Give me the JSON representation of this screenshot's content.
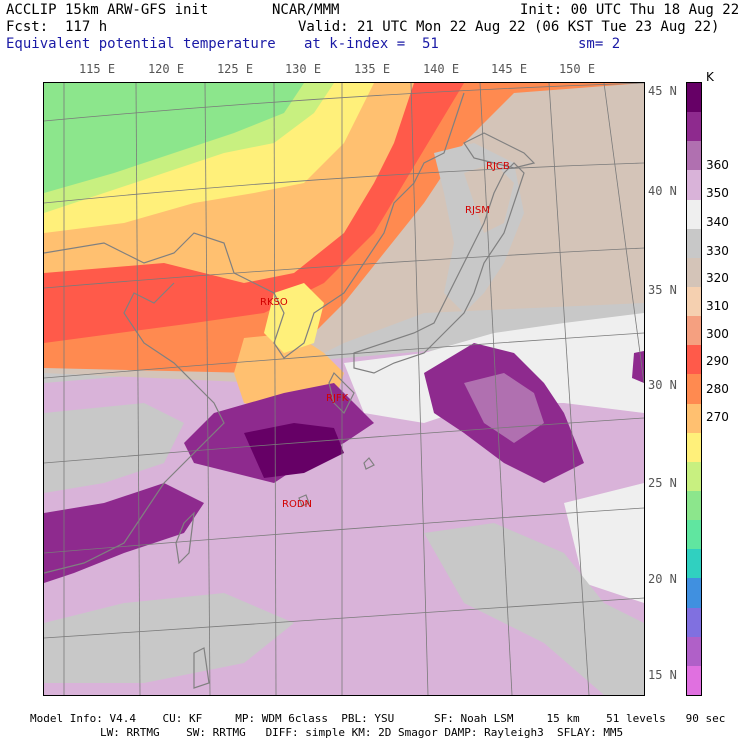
{
  "header": {
    "line1_left": "ACCLIP 15km ARW-GFS init",
    "line1_mid": "NCAR/MMM",
    "line1_right": "Init: 00 UTC Thu 18 Aug 22",
    "line2_left": "Fcst:  117 h",
    "line2_right": "Valid: 21 UTC Mon 22 Aug 22 (06 KST Tue 23 Aug 22)",
    "line3_left": "Equivalent potential temperature",
    "line3_mid": "at k-index =  51",
    "line3_right": "sm= 2"
  },
  "map": {
    "lon_labels": [
      "115 E",
      "120 E",
      "125 E",
      "130 E",
      "135 E",
      "140 E",
      "145 E",
      "150 E"
    ],
    "lat_labels": [
      "45 N",
      "40 N",
      "35 N",
      "30 N",
      "25 N",
      "20 N",
      "15 N"
    ],
    "stations": [
      "RJCB",
      "RJSM",
      "RKSO",
      "RJFK",
      "RODN"
    ],
    "colors": {
      "ocean_high": "#8e2a8e",
      "ocean_mid": "#d9b3d9",
      "ocean_light": "#efe0ef",
      "gray": "#c8c8c8",
      "land_green": "#8ce68c",
      "land_yellow": "#fff07a",
      "land_orange": "#ffb866",
      "land_red": "#ff5a4a",
      "coast": "#808080"
    }
  },
  "colorbar": {
    "unit": "K",
    "labels": [
      "360",
      "350",
      "340",
      "330",
      "320",
      "310",
      "300",
      "290",
      "280",
      "270"
    ],
    "colors": [
      "#660066",
      "#8e2a8e",
      "#b070b0",
      "#d9b3d9",
      "#efefef",
      "#c8c8c8",
      "#d4c4b8",
      "#f5d0b0",
      "#f5a080",
      "#ff5a4a",
      "#ff8a50",
      "#ffc070",
      "#fff07a",
      "#c8f080",
      "#8ce68c",
      "#60e6a0",
      "#30d0c0",
      "#4090e0",
      "#8070e0",
      "#b060c8",
      "#e070e0"
    ]
  },
  "footer": {
    "line1": "Model Info: V4.4    CU: KF     MP: WDM 6class  PBL: YSU      SF: Noah LSM     15 km    51 levels   90 sec",
    "line2": "LW: RRTMG    SW: RRTMG   DIFF: simple KM: 2D Smagor DAMP: Rayleigh3  SFLAY: MM5"
  }
}
